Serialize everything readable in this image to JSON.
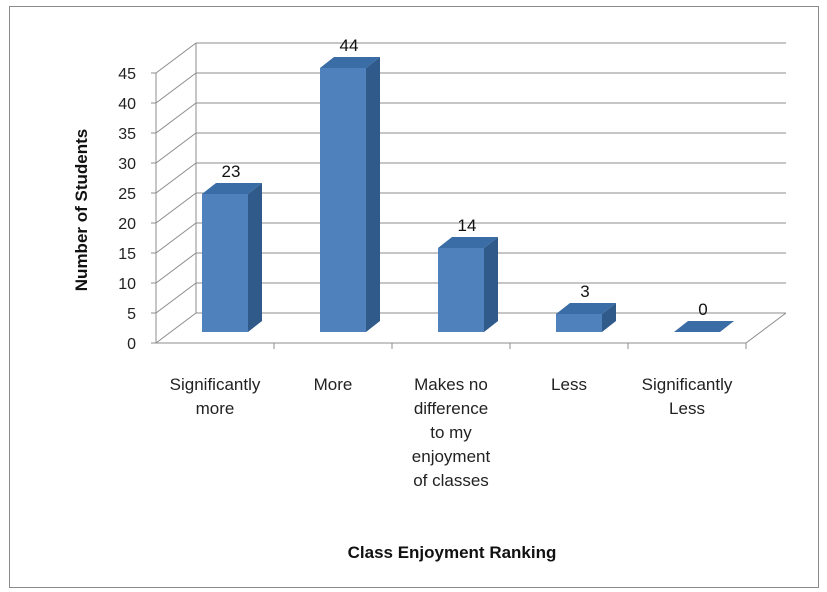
{
  "chart_data": {
    "type": "bar",
    "style": "3d-column",
    "categories": [
      [
        "Significantly",
        "more"
      ],
      [
        "More"
      ],
      [
        "Makes no",
        "difference",
        "to my",
        "enjoyment",
        "of classes"
      ],
      [
        "Less"
      ],
      [
        "Significantly",
        "Less"
      ]
    ],
    "values": [
      23,
      44,
      14,
      3,
      0
    ],
    "data_labels": [
      "23",
      "44",
      "14",
      "3",
      "0"
    ],
    "yticks": [
      "0",
      "5",
      "10",
      "15",
      "20",
      "25",
      "30",
      "35",
      "40",
      "45"
    ],
    "title": "",
    "xlabel": "Class Enjoyment Ranking",
    "ylabel": "Number of Students",
    "ylim": [
      0,
      45
    ],
    "grid": true,
    "legend": "none",
    "colors": {
      "bar_front": "#4F81BD",
      "bar_side": "#2F5A8A",
      "bar_top": "#3A6CA5",
      "grid": "#8c8c8c"
    }
  }
}
